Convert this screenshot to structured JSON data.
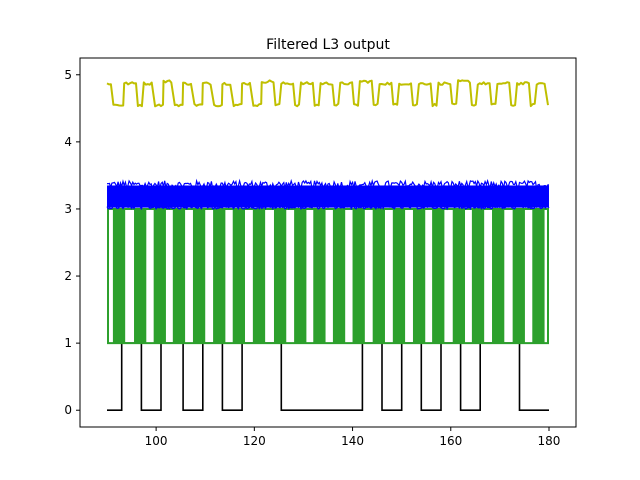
{
  "chart_data": {
    "type": "line",
    "title": "Filtered L3 output",
    "xlabel": "",
    "ylabel": "",
    "xlim": [
      84.5,
      185.5
    ],
    "ylim": [
      -0.25,
      5.25
    ],
    "x_ticks": [
      100,
      120,
      140,
      160,
      180
    ],
    "y_ticks": [
      0,
      1,
      2,
      3,
      4,
      5
    ],
    "grid": false,
    "colors": {
      "black": "#000000",
      "green": "#2ca02c",
      "blue": "#0000ff",
      "yellow": "#bfbf00"
    },
    "series": [
      {
        "color": "#000000",
        "style": "square-wave",
        "low": 0,
        "high": 1,
        "x_start": 90,
        "x_end": 180,
        "high_intervals": [
          [
            93,
            97
          ],
          [
            101,
            105.5
          ],
          [
            109.5,
            113.5
          ],
          [
            117.5,
            125.5
          ],
          [
            142,
            146
          ],
          [
            150,
            154
          ],
          [
            158,
            162
          ],
          [
            166,
            174
          ]
        ]
      },
      {
        "color": "#2ca02c",
        "style": "pulse-train",
        "low": 1,
        "high": 3,
        "x_start": 90,
        "x_end": 180,
        "pulse_starts": [
          91.2,
          95.5,
          99.5,
          103.4,
          107.5,
          111.6,
          115.6,
          119.7,
          124.0,
          128.1,
          132.0,
          136.0,
          140.0,
          144.1,
          148.2,
          152.3,
          156.2,
          160.4,
          164.3,
          168.4,
          172.6,
          176.6
        ],
        "pulse_width": 2.5
      },
      {
        "color": "#0000ff",
        "style": "noisy-band",
        "x_start": 90,
        "x_end": 180,
        "band_low": 3.02,
        "band_high": 3.35,
        "peak_high": 3.42
      },
      {
        "color": "#bfbf00",
        "style": "periodic-plateau",
        "low": 4.55,
        "high": 4.87,
        "x_start": 90,
        "x_end": 180,
        "high_intervals": [
          [
            90,
            91
          ],
          [
            93.5,
            96
          ],
          [
            97.5,
            99.5
          ],
          [
            101.5,
            103.5
          ],
          [
            105.5,
            107.5
          ],
          [
            109.5,
            111.5
          ],
          [
            113.5,
            115.5
          ],
          [
            117.5,
            119.5
          ],
          [
            121.5,
            124
          ],
          [
            125.5,
            128
          ],
          [
            129.5,
            132
          ],
          [
            133.5,
            136
          ],
          [
            137.5,
            140
          ],
          [
            141.5,
            144
          ],
          [
            145.5,
            148
          ],
          [
            149.5,
            152
          ],
          [
            153.5,
            156
          ],
          [
            157.5,
            160
          ],
          [
            161.5,
            164
          ],
          [
            165.5,
            168
          ],
          [
            169.5,
            172
          ],
          [
            173.5,
            176
          ],
          [
            177.5,
            179.5
          ]
        ]
      }
    ]
  }
}
